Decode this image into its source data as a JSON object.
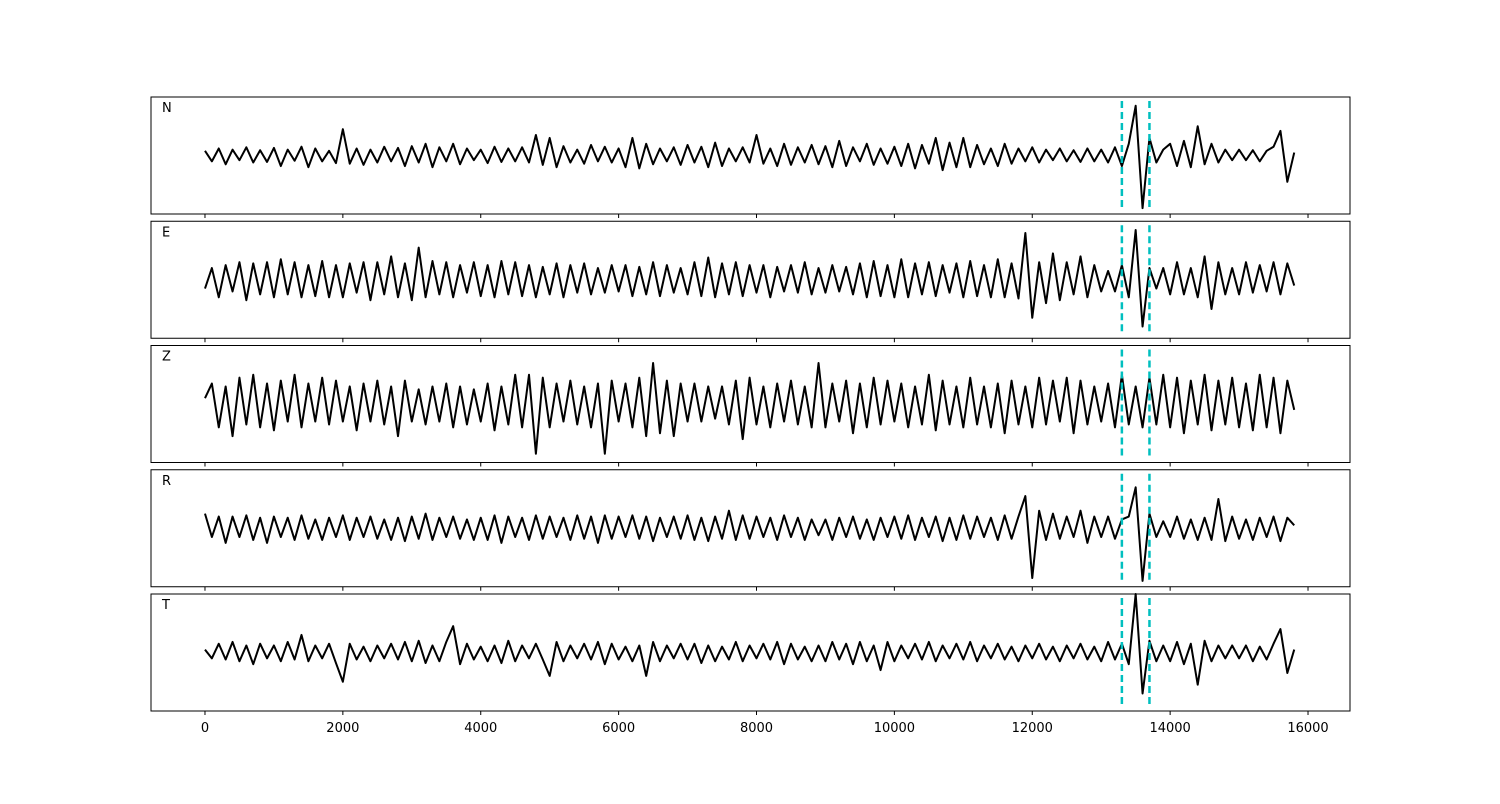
{
  "chart_data": {
    "type": "line",
    "color": "#000000",
    "vline_color": "#00bfbf",
    "xlim": [
      -783,
      16609
    ],
    "xticks": [
      0,
      2000,
      4000,
      6000,
      8000,
      10000,
      12000,
      14000,
      16000
    ],
    "ylim": [
      -1,
      1
    ],
    "vlines": [
      13300,
      13700
    ],
    "x": [
      0,
      100,
      200,
      300,
      400,
      500,
      600,
      700,
      800,
      900,
      1000,
      1100,
      1200,
      1300,
      1400,
      1500,
      1600,
      1700,
      1800,
      1900,
      2000,
      2100,
      2200,
      2300,
      2400,
      2500,
      2600,
      2700,
      2800,
      2900,
      3000,
      3100,
      3200,
      3300,
      3400,
      3500,
      3600,
      3700,
      3800,
      3900,
      4000,
      4100,
      4200,
      4300,
      4400,
      4500,
      4600,
      4700,
      4800,
      4900,
      5000,
      5100,
      5200,
      5300,
      5400,
      5500,
      5600,
      5700,
      5800,
      5900,
      6000,
      6100,
      6200,
      6300,
      6400,
      6500,
      6600,
      6700,
      6800,
      6900,
      7000,
      7100,
      7200,
      7300,
      7400,
      7500,
      7600,
      7700,
      7800,
      7900,
      8000,
      8100,
      8200,
      8300,
      8400,
      8500,
      8600,
      8700,
      8800,
      8900,
      9000,
      9100,
      9200,
      9300,
      9400,
      9500,
      9600,
      9700,
      9800,
      9900,
      10000,
      10100,
      10200,
      10300,
      10400,
      10500,
      10600,
      10700,
      10800,
      10900,
      11000,
      11100,
      11200,
      11300,
      11400,
      11500,
      11600,
      11700,
      11800,
      11900,
      12000,
      12100,
      12200,
      12300,
      12400,
      12500,
      12600,
      12700,
      12800,
      12900,
      13000,
      13100,
      13200,
      13300,
      13400,
      13500,
      13600,
      13700,
      13800,
      13900,
      14000,
      14100,
      14200,
      14300,
      14400,
      14500,
      14600,
      14700,
      14800,
      14900,
      15000,
      15100,
      15200,
      15300,
      15400,
      15500,
      15600,
      15700,
      15800
    ],
    "series": [
      {
        "name": "N",
        "values": [
          0.08,
          -0.1,
          0.12,
          -0.15,
          0.1,
          -0.08,
          0.14,
          -0.12,
          0.09,
          -0.11,
          0.13,
          -0.18,
          0.1,
          -0.09,
          0.15,
          -0.2,
          0.12,
          -0.1,
          0.08,
          -0.13,
          0.45,
          -0.14,
          0.12,
          -0.16,
          0.1,
          -0.12,
          0.15,
          -0.1,
          0.13,
          -0.18,
          0.16,
          -0.12,
          0.2,
          -0.2,
          0.14,
          -0.1,
          0.2,
          -0.15,
          0.12,
          -0.08,
          0.1,
          -0.13,
          0.15,
          -0.11,
          0.12,
          -0.1,
          0.14,
          -0.12,
          0.35,
          -0.16,
          0.3,
          -0.2,
          0.16,
          -0.12,
          0.1,
          -0.14,
          0.18,
          -0.1,
          0.15,
          -0.12,
          0.12,
          -0.2,
          0.3,
          -0.22,
          0.2,
          -0.15,
          0.12,
          -0.1,
          0.14,
          -0.16,
          0.18,
          -0.12,
          0.15,
          -0.2,
          0.22,
          -0.18,
          0.12,
          -0.1,
          0.14,
          -0.12,
          0.35,
          -0.14,
          0.12,
          -0.18,
          0.2,
          -0.16,
          0.14,
          -0.12,
          0.18,
          -0.15,
          0.16,
          -0.2,
          0.25,
          -0.18,
          0.14,
          -0.1,
          0.2,
          -0.16,
          0.12,
          -0.14,
          0.15,
          -0.18,
          0.2,
          -0.22,
          0.18,
          -0.14,
          0.3,
          -0.25,
          0.22,
          -0.2,
          0.3,
          -0.2,
          0.18,
          -0.15,
          0.12,
          -0.18,
          0.2,
          -0.14,
          0.12,
          -0.1,
          0.14,
          -0.12,
          0.1,
          -0.08,
          0.12,
          -0.1,
          0.09,
          -0.11,
          0.12,
          -0.1,
          0.1,
          -0.12,
          0.14,
          -0.18,
          0.2,
          0.85,
          -0.9,
          0.3,
          -0.12,
          0.1,
          0.2,
          -0.18,
          0.25,
          -0.2,
          0.5,
          -0.15,
          0.2,
          -0.12,
          0.1,
          -0.08,
          0.1,
          -0.08,
          0.09,
          -0.1,
          0.08,
          0.15,
          0.42,
          -0.45,
          0.05
        ]
      },
      {
        "name": "E",
        "values": [
          -0.15,
          0.2,
          -0.3,
          0.25,
          -0.2,
          0.3,
          -0.35,
          0.28,
          -0.25,
          0.3,
          -0.3,
          0.35,
          -0.25,
          0.3,
          -0.3,
          0.25,
          -0.28,
          0.32,
          -0.3,
          0.25,
          -0.3,
          0.28,
          -0.22,
          0.3,
          -0.35,
          0.3,
          -0.25,
          0.4,
          -0.3,
          0.28,
          -0.35,
          0.55,
          -0.3,
          0.32,
          -0.25,
          0.3,
          -0.3,
          0.25,
          -0.22,
          0.3,
          -0.28,
          0.25,
          -0.3,
          0.32,
          -0.25,
          0.3,
          -0.28,
          0.25,
          -0.3,
          0.22,
          -0.25,
          0.28,
          -0.3,
          0.25,
          -0.22,
          0.28,
          -0.25,
          0.2,
          -0.22,
          0.25,
          -0.2,
          0.25,
          -0.28,
          0.22,
          -0.25,
          0.3,
          -0.28,
          0.25,
          -0.22,
          0.2,
          -0.25,
          0.3,
          -0.28,
          0.38,
          -0.3,
          0.28,
          -0.25,
          0.3,
          -0.28,
          0.25,
          -0.22,
          0.25,
          -0.3,
          0.22,
          -0.2,
          0.25,
          -0.22,
          0.3,
          -0.25,
          0.2,
          -0.22,
          0.25,
          -0.2,
          0.22,
          -0.25,
          0.28,
          -0.3,
          0.32,
          -0.28,
          0.25,
          -0.3,
          0.35,
          -0.3,
          0.28,
          -0.25,
          0.3,
          -0.28,
          0.25,
          -0.22,
          0.28,
          -0.3,
          0.32,
          -0.28,
          0.25,
          -0.3,
          0.35,
          -0.3,
          0.28,
          -0.32,
          0.8,
          -0.65,
          0.3,
          -0.4,
          0.45,
          -0.35,
          0.3,
          -0.25,
          0.4,
          -0.3,
          0.25,
          -0.2,
          0.15,
          -0.2,
          0.25,
          -0.3,
          0.85,
          -0.8,
          0.2,
          -0.15,
          0.2,
          -0.25,
          0.3,
          -0.25,
          0.2,
          -0.3,
          0.4,
          -0.5,
          0.3,
          -0.25,
          0.2,
          -0.25,
          0.3,
          -0.22,
          0.25,
          -0.2,
          0.3,
          -0.25,
          0.28,
          -0.1
        ]
      },
      {
        "name": "Z",
        "values": [
          0.1,
          0.35,
          -0.4,
          0.3,
          -0.55,
          0.45,
          -0.35,
          0.5,
          -0.4,
          0.35,
          -0.45,
          0.4,
          -0.3,
          0.5,
          -0.4,
          0.35,
          -0.3,
          0.45,
          -0.35,
          0.4,
          -0.3,
          0.3,
          -0.45,
          0.35,
          -0.3,
          0.4,
          -0.35,
          0.3,
          -0.55,
          0.4,
          -0.3,
          0.25,
          -0.35,
          0.3,
          -0.3,
          0.35,
          -0.4,
          0.3,
          -0.35,
          0.25,
          -0.3,
          0.35,
          -0.45,
          0.3,
          -0.35,
          0.5,
          -0.4,
          0.5,
          -0.85,
          0.45,
          -0.4,
          0.35,
          -0.3,
          0.4,
          -0.35,
          0.3,
          -0.4,
          0.35,
          -0.85,
          0.4,
          -0.3,
          0.35,
          -0.4,
          0.45,
          -0.55,
          0.7,
          -0.5,
          0.4,
          -0.55,
          0.35,
          -0.3,
          0.35,
          -0.3,
          0.3,
          -0.25,
          0.3,
          -0.35,
          0.4,
          -0.6,
          0.45,
          -0.35,
          0.3,
          -0.4,
          0.35,
          -0.3,
          0.4,
          -0.35,
          0.3,
          -0.4,
          0.7,
          -0.4,
          0.35,
          -0.3,
          0.4,
          -0.5,
          0.35,
          -0.4,
          0.45,
          -0.35,
          0.4,
          -0.3,
          0.35,
          -0.4,
          0.3,
          -0.35,
          0.5,
          -0.45,
          0.4,
          -0.35,
          0.3,
          -0.4,
          0.45,
          -0.35,
          0.3,
          -0.4,
          0.35,
          -0.5,
          0.4,
          -0.35,
          0.3,
          -0.4,
          0.45,
          -0.35,
          0.4,
          -0.3,
          0.45,
          -0.5,
          0.4,
          -0.35,
          0.3,
          -0.3,
          0.35,
          -0.4,
          0.5,
          -0.35,
          0.3,
          -0.4,
          0.45,
          -0.35,
          0.5,
          -0.4,
          0.45,
          -0.5,
          0.4,
          -0.35,
          0.5,
          -0.45,
          0.4,
          -0.35,
          0.45,
          -0.4,
          0.35,
          -0.45,
          0.5,
          -0.4,
          0.45,
          -0.5,
          0.4,
          -0.1
        ]
      },
      {
        "name": "R",
        "values": [
          0.25,
          -0.15,
          0.2,
          -0.25,
          0.2,
          -0.15,
          0.22,
          -0.2,
          0.18,
          -0.25,
          0.2,
          -0.15,
          0.18,
          -0.2,
          0.22,
          -0.18,
          0.15,
          -0.2,
          0.18,
          -0.15,
          0.22,
          -0.2,
          0.18,
          -0.15,
          0.2,
          -0.18,
          0.15,
          -0.2,
          0.18,
          -0.22,
          0.2,
          -0.18,
          0.25,
          -0.2,
          0.18,
          -0.15,
          0.2,
          -0.18,
          0.15,
          -0.2,
          0.18,
          -0.2,
          0.22,
          -0.25,
          0.2,
          -0.15,
          0.18,
          -0.2,
          0.22,
          -0.18,
          0.2,
          -0.15,
          0.18,
          -0.2,
          0.22,
          -0.18,
          0.2,
          -0.25,
          0.22,
          -0.18,
          0.2,
          -0.15,
          0.22,
          -0.18,
          0.2,
          -0.22,
          0.18,
          -0.15,
          0.2,
          -0.18,
          0.22,
          -0.2,
          0.18,
          -0.22,
          0.2,
          -0.18,
          0.3,
          -0.2,
          0.22,
          -0.18,
          0.2,
          -0.15,
          0.18,
          -0.2,
          0.22,
          -0.15,
          0.18,
          -0.2,
          0.15,
          -0.12,
          0.15,
          -0.2,
          0.18,
          -0.15,
          0.2,
          -0.18,
          0.15,
          -0.2,
          0.18,
          -0.15,
          0.2,
          -0.18,
          0.22,
          -0.2,
          0.18,
          -0.15,
          0.2,
          -0.22,
          0.18,
          -0.2,
          0.22,
          -0.18,
          0.2,
          -0.15,
          0.18,
          -0.2,
          0.22,
          -0.18,
          0.2,
          0.55,
          -0.85,
          0.3,
          -0.2,
          0.25,
          -0.18,
          0.2,
          -0.15,
          0.3,
          -0.25,
          0.2,
          -0.15,
          0.2,
          -0.18,
          0.15,
          0.2,
          0.7,
          -0.9,
          0.25,
          -0.15,
          0.12,
          -0.15,
          0.2,
          -0.18,
          0.15,
          -0.2,
          0.18,
          -0.2,
          0.5,
          -0.22,
          0.2,
          -0.18,
          0.15,
          -0.2,
          0.18,
          -0.15,
          0.2,
          -0.22,
          0.18,
          0.05
        ]
      },
      {
        "name": "T",
        "values": [
          0.05,
          -0.1,
          0.15,
          -0.12,
          0.18,
          -0.15,
          0.12,
          -0.2,
          0.15,
          -0.1,
          0.12,
          -0.15,
          0.18,
          -0.12,
          0.3,
          -0.15,
          0.12,
          -0.1,
          0.15,
          -0.18,
          -0.5,
          0.15,
          -0.12,
          0.1,
          -0.15,
          0.12,
          -0.1,
          0.15,
          -0.12,
          0.18,
          -0.15,
          0.2,
          -0.18,
          0.12,
          -0.15,
          0.18,
          0.45,
          -0.2,
          0.15,
          -0.12,
          0.1,
          -0.15,
          0.12,
          -0.18,
          0.2,
          -0.15,
          0.12,
          -0.1,
          0.15,
          -0.12,
          -0.4,
          0.18,
          -0.15,
          0.12,
          -0.1,
          0.15,
          -0.12,
          0.18,
          -0.2,
          0.15,
          -0.12,
          0.1,
          -0.15,
          0.12,
          -0.4,
          0.18,
          -0.15,
          0.12,
          -0.1,
          0.15,
          -0.12,
          0.15,
          -0.18,
          0.12,
          -0.15,
          0.1,
          -0.12,
          0.18,
          -0.15,
          0.12,
          -0.1,
          0.15,
          -0.12,
          0.18,
          -0.2,
          0.15,
          -0.12,
          0.1,
          -0.15,
          0.12,
          -0.15,
          0.18,
          -0.12,
          0.15,
          -0.2,
          0.18,
          -0.15,
          0.12,
          -0.3,
          0.18,
          -0.15,
          0.12,
          -0.1,
          0.15,
          -0.12,
          0.18,
          -0.15,
          0.12,
          -0.1,
          0.15,
          -0.12,
          0.18,
          -0.15,
          0.12,
          -0.1,
          0.15,
          -0.12,
          0.1,
          -0.15,
          0.12,
          -0.1,
          0.15,
          -0.12,
          0.1,
          -0.15,
          0.12,
          -0.1,
          0.15,
          -0.12,
          0.1,
          -0.15,
          0.18,
          -0.12,
          0.15,
          -0.2,
          1.0,
          -0.7,
          0.2,
          -0.15,
          0.12,
          -0.15,
          0.18,
          -0.2,
          0.15,
          -0.55,
          0.2,
          -0.15,
          0.12,
          -0.1,
          0.12,
          -0.1,
          0.12,
          -0.15,
          0.1,
          -0.12,
          0.15,
          0.4,
          -0.35,
          0.05
        ]
      }
    ]
  }
}
